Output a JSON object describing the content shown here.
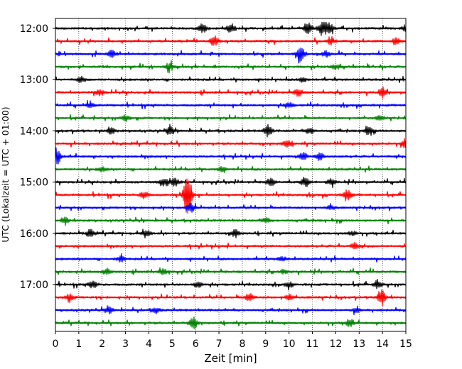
{
  "chart_data": {
    "type": "line",
    "title": "",
    "xlabel": "Zeit  [min]",
    "ylabel": "UTC (Lokalzeit = UTC + 01:00)",
    "xlim": [
      0,
      15
    ],
    "x_ticks": [
      "0",
      "1",
      "2",
      "3",
      "4",
      "5",
      "6",
      "7",
      "8",
      "9",
      "10",
      "11",
      "12",
      "13",
      "14",
      "15"
    ],
    "y_tick_labels": [
      "12:00",
      "13:00",
      "14:00",
      "15:00",
      "16:00",
      "17:00"
    ],
    "grid": "vertical dotted lines at each minute",
    "trace_interval_min": 15,
    "trace_colors": [
      "#000000",
      "#ff0000",
      "#0000ff",
      "#008000"
    ],
    "traces": [
      {
        "start": "12:00",
        "events": [
          {
            "x": 6.3,
            "amp": 6
          },
          {
            "x": 7.5,
            "amp": 7
          },
          {
            "x": 10.8,
            "amp": 8
          },
          {
            "x": 11.4,
            "amp": 9
          },
          {
            "x": 11.7,
            "amp": 8
          },
          {
            "x": 15.0,
            "amp": 4
          }
        ]
      },
      {
        "start": "12:15",
        "events": [
          {
            "x": 6.8,
            "amp": 7
          },
          {
            "x": 11.8,
            "amp": 4
          },
          {
            "x": 14.6,
            "amp": 4
          }
        ]
      },
      {
        "start": "12:30",
        "events": [
          {
            "x": 2.4,
            "amp": 5
          },
          {
            "x": 10.5,
            "amp": 12
          },
          {
            "x": 11.6,
            "amp": 4
          }
        ]
      },
      {
        "start": "12:45",
        "events": [
          {
            "x": 4.9,
            "amp": 5
          },
          {
            "x": 12.0,
            "amp": 3
          }
        ]
      },
      {
        "start": "13:00",
        "events": [
          {
            "x": 1.1,
            "amp": 3
          },
          {
            "x": 10.6,
            "amp": 3
          }
        ]
      },
      {
        "start": "13:15",
        "events": [
          {
            "x": 1.9,
            "amp": 4
          },
          {
            "x": 10.4,
            "amp": 5
          },
          {
            "x": 14.0,
            "amp": 5
          }
        ]
      },
      {
        "start": "13:30",
        "events": [
          {
            "x": 1.5,
            "amp": 3
          },
          {
            "x": 10.0,
            "amp": 4
          }
        ]
      },
      {
        "start": "13:45",
        "events": [
          {
            "x": 3.0,
            "amp": 4
          },
          {
            "x": 13.9,
            "amp": 3
          }
        ]
      },
      {
        "start": "14:00",
        "events": [
          {
            "x": 2.4,
            "amp": 4
          },
          {
            "x": 4.9,
            "amp": 5
          },
          {
            "x": 9.1,
            "amp": 8
          },
          {
            "x": 10.9,
            "amp": 4
          },
          {
            "x": 13.4,
            "amp": 5
          }
        ]
      },
      {
        "start": "14:15",
        "events": [
          {
            "x": 9.9,
            "amp": 5
          },
          {
            "x": 15.0,
            "amp": 7
          }
        ]
      },
      {
        "start": "14:30",
        "events": [
          {
            "x": 0.05,
            "amp": 11
          },
          {
            "x": 10.6,
            "amp": 5
          },
          {
            "x": 11.3,
            "amp": 6
          }
        ]
      },
      {
        "start": "14:45",
        "events": [
          {
            "x": 2.0,
            "amp": 3
          },
          {
            "x": 7.1,
            "amp": 3
          }
        ]
      },
      {
        "start": "15:00",
        "events": [
          {
            "x": 4.6,
            "amp": 5
          },
          {
            "x": 5.1,
            "amp": 5
          },
          {
            "x": 9.2,
            "amp": 5
          },
          {
            "x": 10.7,
            "amp": 5
          },
          {
            "x": 11.8,
            "amp": 4
          }
        ]
      },
      {
        "start": "15:15",
        "events": [
          {
            "x": 3.8,
            "amp": 5
          },
          {
            "x": 5.65,
            "amp": 31
          },
          {
            "x": 12.5,
            "amp": 7
          }
        ]
      },
      {
        "start": "15:30",
        "events": [
          {
            "x": 5.8,
            "amp": 6
          },
          {
            "x": 11.8,
            "amp": 3
          }
        ]
      },
      {
        "start": "15:45",
        "events": [
          {
            "x": 0.4,
            "amp": 4
          },
          {
            "x": 9.0,
            "amp": 3
          }
        ]
      },
      {
        "start": "16:00",
        "events": [
          {
            "x": 1.5,
            "amp": 5
          },
          {
            "x": 3.9,
            "amp": 4
          },
          {
            "x": 7.7,
            "amp": 5
          },
          {
            "x": 12.7,
            "amp": 3
          }
        ]
      },
      {
        "start": "16:15",
        "events": [
          {
            "x": 12.8,
            "amp": 4
          }
        ]
      },
      {
        "start": "16:30",
        "events": [
          {
            "x": 2.8,
            "amp": 4
          },
          {
            "x": 9.7,
            "amp": 3
          }
        ]
      },
      {
        "start": "16:45",
        "events": [
          {
            "x": 2.2,
            "amp": 4
          },
          {
            "x": 4.6,
            "amp": 4
          },
          {
            "x": 9.8,
            "amp": 3
          }
        ]
      },
      {
        "start": "17:00",
        "events": [
          {
            "x": 1.6,
            "amp": 5
          },
          {
            "x": 6.1,
            "amp": 4
          },
          {
            "x": 10.0,
            "amp": 3
          },
          {
            "x": 13.8,
            "amp": 5
          }
        ]
      },
      {
        "start": "17:15",
        "events": [
          {
            "x": 0.6,
            "amp": 5
          },
          {
            "x": 8.3,
            "amp": 5
          },
          {
            "x": 10.0,
            "amp": 4
          },
          {
            "x": 13.95,
            "amp": 10
          }
        ]
      },
      {
        "start": "17:30",
        "events": [
          {
            "x": 2.3,
            "amp": 4
          },
          {
            "x": 4.3,
            "amp": 3
          },
          {
            "x": 12.9,
            "amp": 3
          }
        ]
      },
      {
        "start": "17:45",
        "events": [
          {
            "x": 5.9,
            "amp": 8
          },
          {
            "x": 12.6,
            "amp": 5
          }
        ]
      }
    ]
  }
}
